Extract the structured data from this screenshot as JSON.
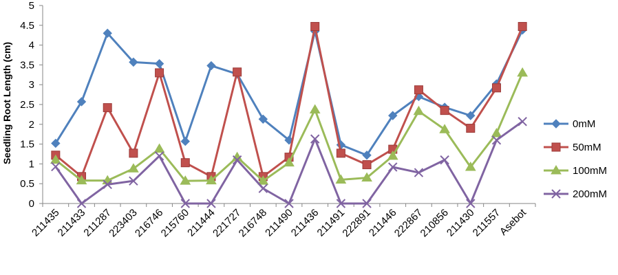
{
  "chart_data": {
    "type": "line",
    "ylabel": "Seedling Root Length (cm)",
    "ylim": [
      0,
      5
    ],
    "yticks": [
      "0",
      "0.5",
      "1",
      "1.5",
      "2",
      "2.5",
      "3",
      "3.5",
      "4",
      "4.5",
      "5"
    ],
    "grid": false,
    "legend_position": "right",
    "categories": [
      "211435",
      "211433",
      "211287",
      "223403",
      "216746",
      "215760",
      "211444",
      "221727",
      "216748",
      "211490",
      "211436",
      "211491",
      "222891",
      "211446",
      "222867",
      "210856",
      "211430",
      "211557",
      "Asebot"
    ],
    "series": [
      {
        "name": "0mM",
        "color": "#4F81BD",
        "marker": "diamond",
        "values": [
          1.52,
          2.57,
          4.3,
          3.57,
          3.53,
          1.57,
          3.48,
          3.27,
          2.13,
          1.6,
          4.35,
          1.48,
          1.22,
          2.22,
          2.7,
          2.43,
          2.22,
          3.02,
          4.38
        ]
      },
      {
        "name": "50mM",
        "color": "#C0504D",
        "marker": "square",
        "values": [
          1.22,
          0.68,
          2.42,
          1.27,
          3.3,
          1.03,
          0.68,
          3.32,
          0.68,
          1.17,
          4.47,
          1.27,
          0.98,
          1.37,
          2.87,
          2.35,
          1.9,
          2.92,
          4.47
        ]
      },
      {
        "name": "100mM",
        "color": "#9BBB59",
        "marker": "triangle",
        "values": [
          1.1,
          0.58,
          0.58,
          0.88,
          1.38,
          0.57,
          0.58,
          1.17,
          0.57,
          1.03,
          2.37,
          0.6,
          0.65,
          1.2,
          2.33,
          1.87,
          0.92,
          1.77,
          3.3
        ]
      },
      {
        "name": "200mM",
        "color": "#8064A2",
        "marker": "x",
        "values": [
          0.93,
          0.0,
          0.48,
          0.57,
          1.2,
          0.0,
          0.0,
          1.1,
          0.38,
          0.0,
          1.63,
          0.0,
          0.0,
          0.92,
          0.78,
          1.1,
          0.0,
          1.6,
          2.07
        ]
      }
    ]
  }
}
